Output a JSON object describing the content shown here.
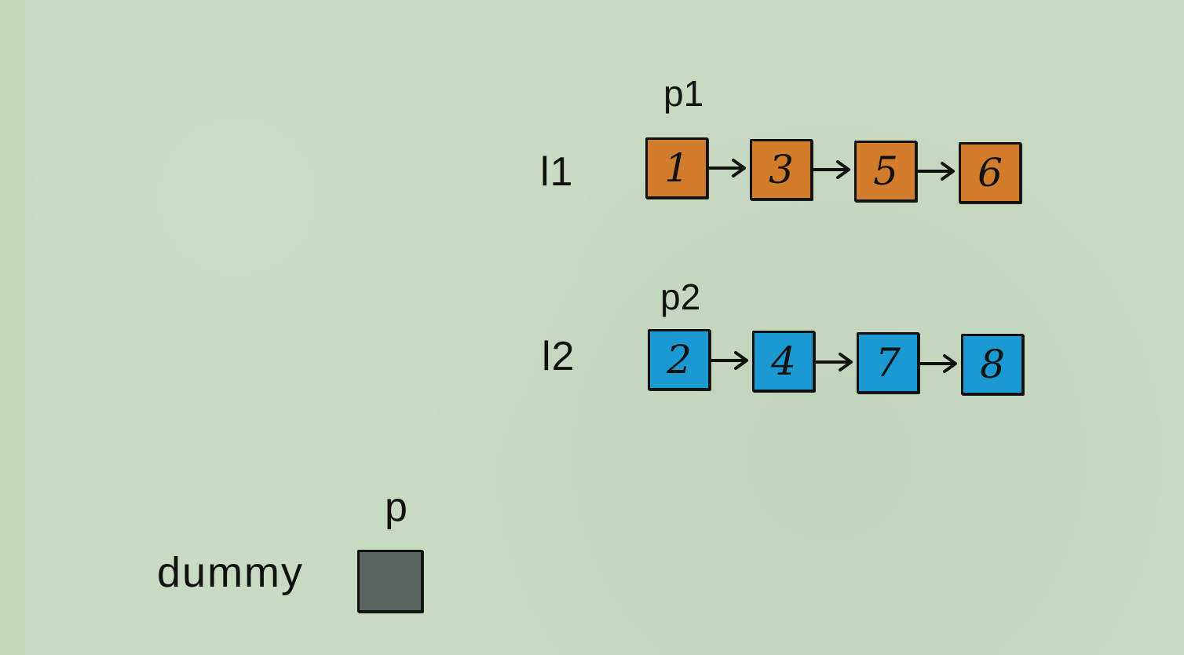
{
  "colors": {
    "background": "#c8dac1",
    "list1_node": "#d17d2c",
    "list2_node": "#1a9ad0",
    "dummy_node": "#5b6360",
    "stroke": "#111111"
  },
  "list1": {
    "name": "l1",
    "pointer": "p1",
    "nodes": [
      "1",
      "3",
      "5",
      "6"
    ]
  },
  "list2": {
    "name": "l2",
    "pointer": "p2",
    "nodes": [
      "2",
      "4",
      "7",
      "8"
    ]
  },
  "dummy": {
    "name": "dummy",
    "pointer": "p",
    "value": ""
  }
}
